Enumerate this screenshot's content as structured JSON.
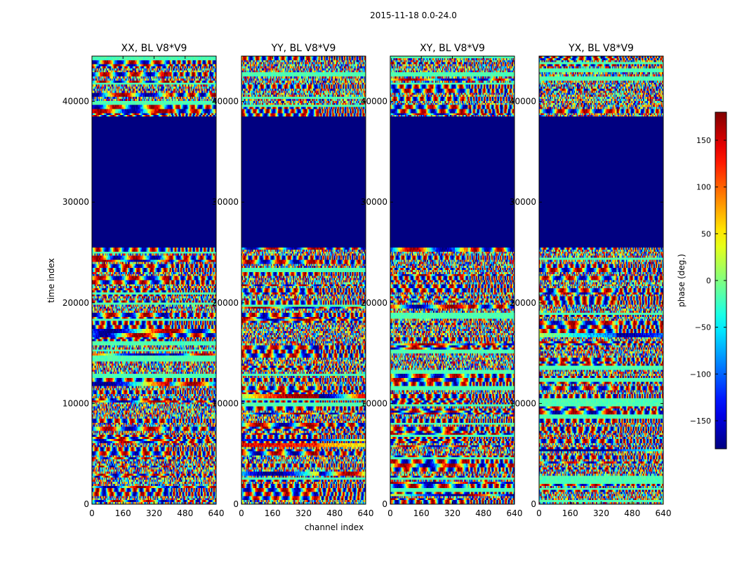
{
  "chart_data": {
    "type": "heatmap",
    "suptitle": "2015-11-18 0.0-24.0",
    "xlabel": "channel index",
    "ylabel": "time index",
    "xlim": [
      0,
      640
    ],
    "ylim": [
      0,
      44500
    ],
    "xticks": [
      "0",
      "160",
      "320",
      "480",
      "640"
    ],
    "yticks": [
      "0",
      "10000",
      "20000",
      "30000",
      "40000"
    ],
    "panels": [
      {
        "title": "XX, BL V8*V9",
        "pol": "XX",
        "flagged_time_range": [
          25500,
          38500
        ]
      },
      {
        "title": "YY, BL V8*V9",
        "pol": "YY",
        "flagged_time_range": [
          25500,
          38500
        ]
      },
      {
        "title": "XY, BL V8*V9",
        "pol": "XY",
        "flagged_time_range": [
          25500,
          38500
        ]
      },
      {
        "title": "YX, BL V8*V9",
        "pol": "YX",
        "flagged_time_range": [
          25500,
          38500
        ]
      }
    ],
    "colorbar": {
      "label": "phase (deg.)",
      "range": [
        -180,
        180
      ],
      "ticks": [
        "150",
        "100",
        "50",
        "0",
        "−50",
        "−100",
        "−150"
      ],
      "colormap": "jet"
    }
  }
}
